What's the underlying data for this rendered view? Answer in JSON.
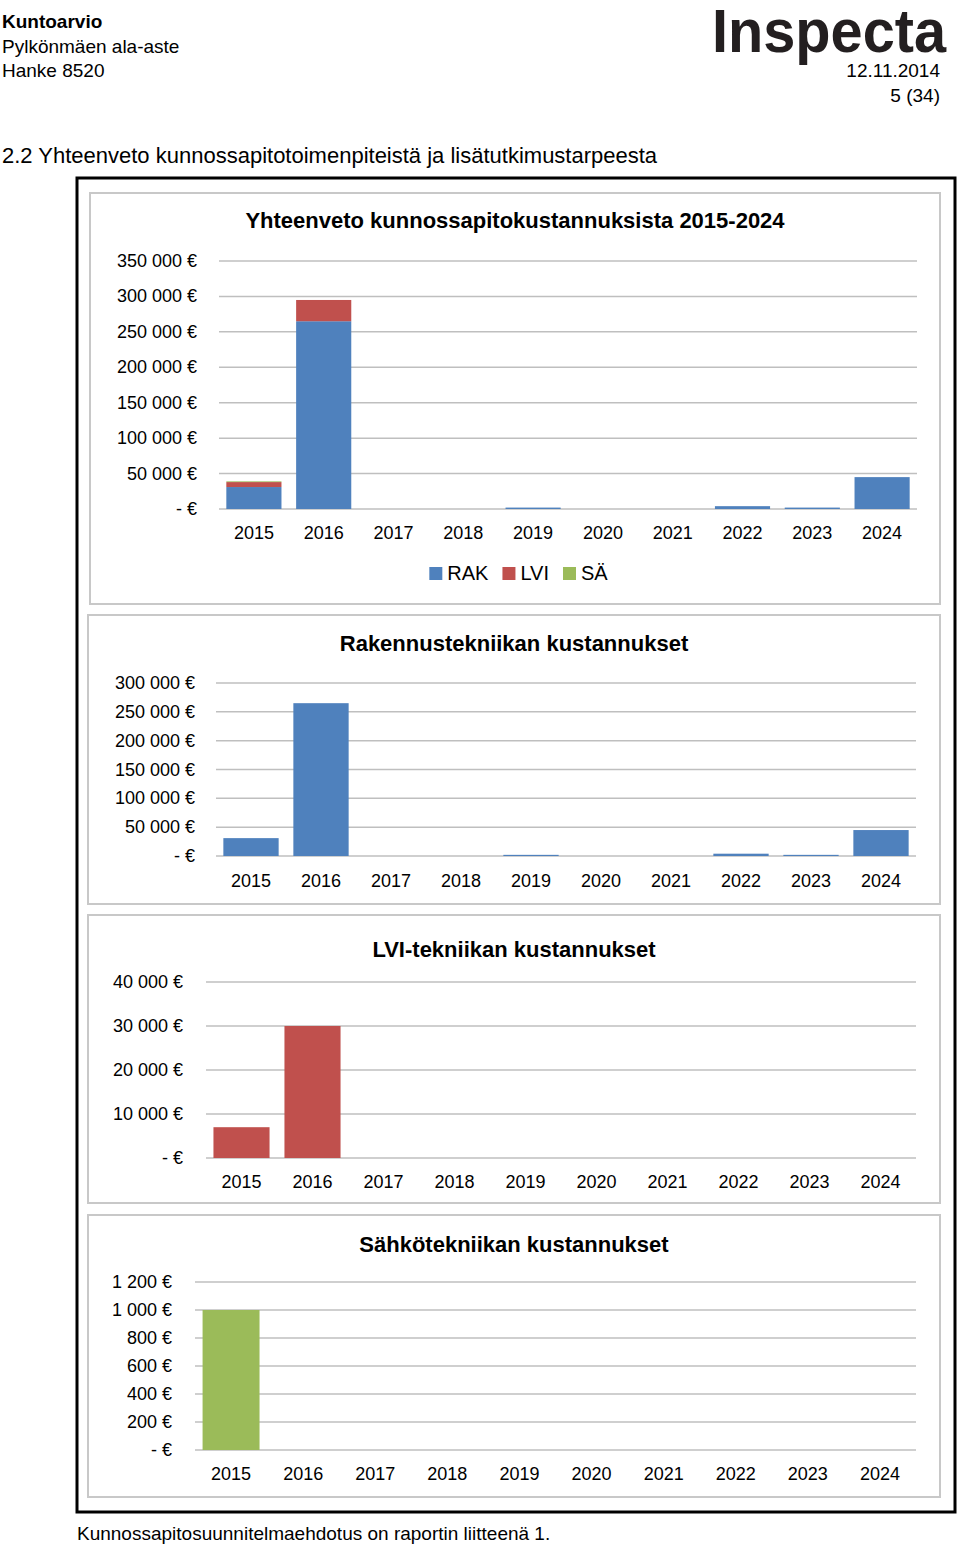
{
  "page": {
    "doc_title": "Kuntoarvio",
    "site": "Pylkönmäen ala-aste",
    "project": "Hanke 8520",
    "logo": "Inspecta",
    "date": "12.11.2014",
    "page_number": "5 (34)",
    "section_title": "2.2 Yhteenveto kunnossapitotoimenpiteistä ja lisätutkimustarpeesta",
    "footer": "Kunnossapitosuunnitelmaehdotus on raportin liitteenä 1."
  },
  "chart_data": [
    {
      "type": "bar",
      "title": "Yhteenveto kunnossapitokustannuksista 2015-2024",
      "stacked": true,
      "legend": "bottom",
      "grid": true,
      "categories": [
        "2015",
        "2016",
        "2017",
        "2018",
        "2019",
        "2020",
        "2021",
        "2022",
        "2023",
        "2024"
      ],
      "series": [
        {
          "name": "RAK",
          "color": "#4f81bd",
          "values": [
            31000,
            265000,
            0,
            0,
            2000,
            0,
            0,
            4000,
            2000,
            45000
          ]
        },
        {
          "name": "LVI",
          "color": "#c0504d",
          "values": [
            7000,
            30000,
            0,
            0,
            0,
            0,
            0,
            0,
            0,
            0
          ]
        },
        {
          "name": "SÄ",
          "color": "#9bbb59",
          "values": [
            1000,
            0,
            0,
            0,
            0,
            0,
            0,
            0,
            0,
            0
          ]
        }
      ],
      "ylim": [
        0,
        350000
      ],
      "yticks": [
        {
          "value": 0,
          "label": "- €"
        },
        {
          "value": 50000,
          "label": "50 000 €"
        },
        {
          "value": 100000,
          "label": "100 000 €"
        },
        {
          "value": 150000,
          "label": "150 000 €"
        },
        {
          "value": 200000,
          "label": "200 000 €"
        },
        {
          "value": 250000,
          "label": "250 000 €"
        },
        {
          "value": 300000,
          "label": "300 000 €"
        },
        {
          "value": 350000,
          "label": "350 000 €"
        }
      ]
    },
    {
      "type": "bar",
      "title": "Rakennustekniikan kustannukset",
      "grid": true,
      "categories": [
        "2015",
        "2016",
        "2017",
        "2018",
        "2019",
        "2020",
        "2021",
        "2022",
        "2023",
        "2024"
      ],
      "values": [
        31000,
        265000,
        0,
        0,
        2000,
        0,
        0,
        4000,
        2000,
        45000
      ],
      "color": "#4f81bd",
      "ylim": [
        0,
        300000
      ],
      "yticks": [
        {
          "value": 0,
          "label": "- €"
        },
        {
          "value": 50000,
          "label": "50 000 €"
        },
        {
          "value": 100000,
          "label": "100 000 €"
        },
        {
          "value": 150000,
          "label": "150 000 €"
        },
        {
          "value": 200000,
          "label": "200 000 €"
        },
        {
          "value": 250000,
          "label": "250 000 €"
        },
        {
          "value": 300000,
          "label": "300 000 €"
        }
      ]
    },
    {
      "type": "bar",
      "title": "LVI-tekniikan kustannukset",
      "grid": true,
      "categories": [
        "2015",
        "2016",
        "2017",
        "2018",
        "2019",
        "2020",
        "2021",
        "2022",
        "2023",
        "2024"
      ],
      "values": [
        7000,
        30000,
        0,
        0,
        0,
        0,
        0,
        0,
        0,
        0
      ],
      "color": "#c0504d",
      "ylim": [
        0,
        40000
      ],
      "yticks": [
        {
          "value": 0,
          "label": "- €"
        },
        {
          "value": 10000,
          "label": "10 000 €"
        },
        {
          "value": 20000,
          "label": "20 000 €"
        },
        {
          "value": 30000,
          "label": "30 000 €"
        },
        {
          "value": 40000,
          "label": "40 000 €"
        }
      ]
    },
    {
      "type": "bar",
      "title": "Sähkötekniikan kustannukset",
      "grid": true,
      "categories": [
        "2015",
        "2016",
        "2017",
        "2018",
        "2019",
        "2020",
        "2021",
        "2022",
        "2023",
        "2024"
      ],
      "values": [
        1000,
        0,
        0,
        0,
        0,
        0,
        0,
        0,
        0,
        0
      ],
      "color": "#9bbb59",
      "ylim": [
        0,
        1200
      ],
      "yticks": [
        {
          "value": 0,
          "label": "- €"
        },
        {
          "value": 200,
          "label": "200 €"
        },
        {
          "value": 400,
          "label": "400 €"
        },
        {
          "value": 600,
          "label": "600 €"
        },
        {
          "value": 800,
          "label": "800 €"
        },
        {
          "value": 1000,
          "label": "1 000 €"
        },
        {
          "value": 1200,
          "label": "1 200 €"
        }
      ]
    }
  ]
}
